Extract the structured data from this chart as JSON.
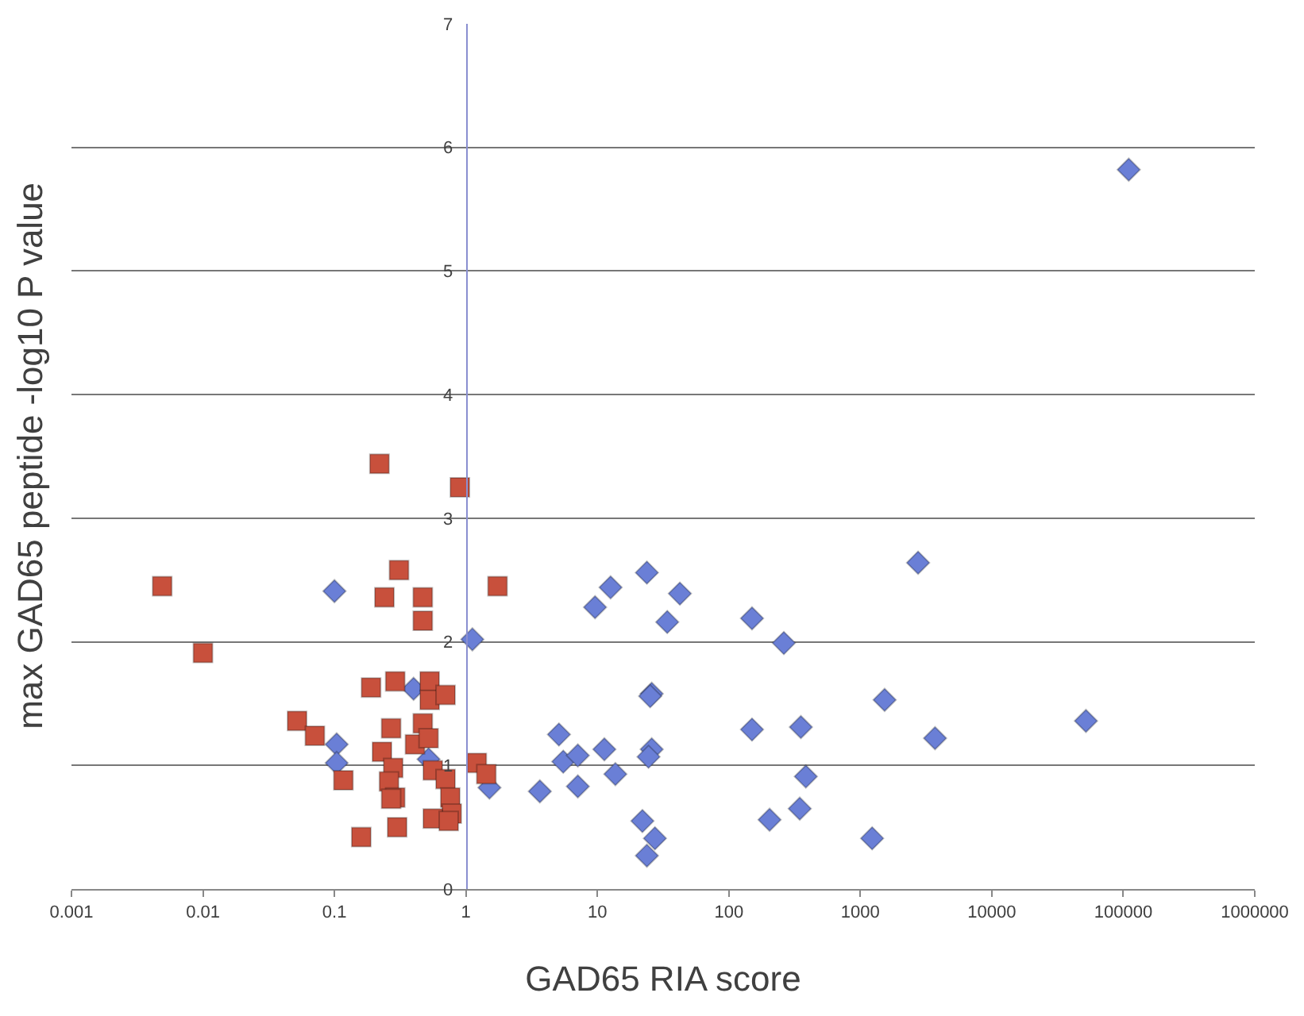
{
  "chart_data": {
    "type": "scatter",
    "xlabel": "GAD65 RIA score",
    "ylabel": "max GAD65 peptide -log10 P value",
    "log": "x",
    "grid": "y",
    "xlim": [
      0.001,
      1000000
    ],
    "xticks": [
      {
        "value": 0.001,
        "label": "0.001"
      },
      {
        "value": 0.01,
        "label": "0.01"
      },
      {
        "value": 0.1,
        "label": "0.1"
      },
      1,
      10,
      100,
      1000,
      10000,
      100000,
      1000000
    ],
    "ylim": [
      0,
      7
    ],
    "yticks": [
      0,
      1,
      2,
      3,
      4,
      5,
      6,
      7
    ],
    "series": [
      {
        "color": "#6a7fd6",
        "marker": "diamond",
        "x": [
          0.1,
          0.104,
          0.104,
          0.4,
          0.52,
          1.12,
          1.51,
          3.65,
          5.1,
          5.5,
          7.1,
          7.1,
          9.6,
          12.6,
          11.3,
          13.7,
          23.8,
          42.4,
          34.0,
          25.9,
          25.2,
          25.9,
          24.5,
          22.0,
          27.4,
          23.8,
          150,
          262,
          150,
          353,
          385,
          346,
          204,
          1530,
          2750,
          3700,
          1230,
          52000,
          110000
        ],
        "values": [
          2.41,
          1.17,
          1.02,
          1.62,
          1.05,
          2.02,
          0.82,
          0.79,
          1.25,
          1.03,
          1.08,
          0.83,
          2.28,
          2.44,
          1.13,
          0.93,
          2.56,
          2.39,
          2.16,
          1.58,
          1.56,
          1.13,
          1.07,
          0.55,
          0.41,
          0.27,
          2.19,
          1.99,
          1.29,
          1.31,
          0.91,
          0.65,
          0.56,
          1.53,
          2.64,
          1.22,
          0.41,
          1.36,
          5.82
        ]
      },
      {
        "color": "#c8503c",
        "marker": "square",
        "x": [
          0.0049,
          0.01,
          0.22,
          0.9,
          1.74,
          0.31,
          0.24,
          0.47,
          0.47,
          0.19,
          0.29,
          0.53,
          0.53,
          0.7,
          0.052,
          0.071,
          0.23,
          0.27,
          0.47,
          0.41,
          0.52,
          0.117,
          0.28,
          0.26,
          0.29,
          0.27,
          0.56,
          0.7,
          0.76,
          0.78,
          0.56,
          0.74,
          0.3,
          0.16,
          1.21,
          1.43
        ],
        "values": [
          2.45,
          1.91,
          3.44,
          3.25,
          2.45,
          2.58,
          2.36,
          2.36,
          2.17,
          1.63,
          1.68,
          1.68,
          1.53,
          1.57,
          1.36,
          1.24,
          1.11,
          1.3,
          1.34,
          1.17,
          1.22,
          0.88,
          0.98,
          0.87,
          0.74,
          0.73,
          0.96,
          0.89,
          0.74,
          0.61,
          0.57,
          0.55,
          0.5,
          0.42,
          1.02,
          0.93
        ]
      }
    ]
  }
}
